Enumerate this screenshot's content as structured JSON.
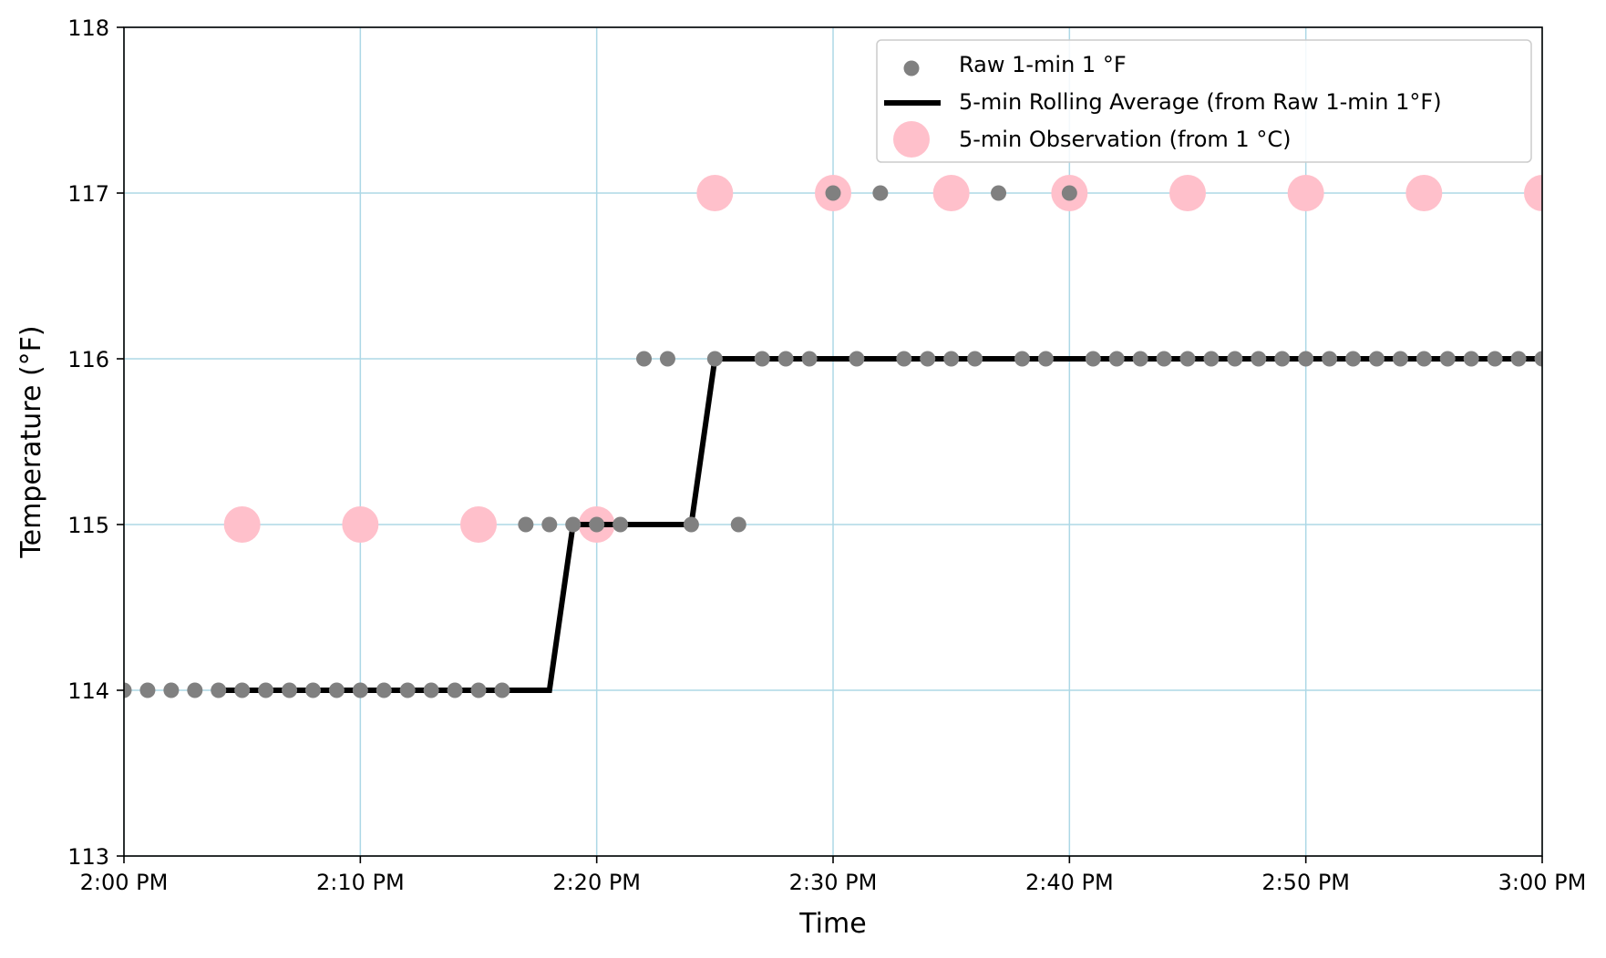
{
  "chart_data": {
    "type": "scatter",
    "xlabel": "Time",
    "ylabel": "Temperature (°F)",
    "xlim_minutes_after_2pm": [
      0,
      60
    ],
    "ylim": [
      113,
      118
    ],
    "x_tick_labels": [
      "2:00 PM",
      "2:10 PM",
      "2:20 PM",
      "2:30 PM",
      "2:40 PM",
      "2:50 PM",
      "3:00 PM"
    ],
    "y_ticks": [
      113,
      114,
      115,
      116,
      117,
      118
    ],
    "grid": true,
    "grid_color": "#add8e6",
    "legend_position": "top-right",
    "series": [
      {
        "name": "Raw 1-min 1 °F",
        "kind": "scatter",
        "color": "#808080",
        "x": [
          "2:00 PM",
          "2:01 PM",
          "2:02 PM",
          "2:03 PM",
          "2:04 PM",
          "2:05 PM",
          "2:06 PM",
          "2:07 PM",
          "2:08 PM",
          "2:09 PM",
          "2:10 PM",
          "2:11 PM",
          "2:12 PM",
          "2:13 PM",
          "2:14 PM",
          "2:15 PM",
          "2:16 PM",
          "2:17 PM",
          "2:18 PM",
          "2:19 PM",
          "2:20 PM",
          "2:21 PM",
          "2:22 PM",
          "2:23 PM",
          "2:24 PM",
          "2:25 PM",
          "2:26 PM",
          "2:27 PM",
          "2:28 PM",
          "2:29 PM",
          "2:30 PM",
          "2:31 PM",
          "2:32 PM",
          "2:33 PM",
          "2:34 PM",
          "2:35 PM",
          "2:36 PM",
          "2:37 PM",
          "2:38 PM",
          "2:39 PM",
          "2:40 PM",
          "2:41 PM",
          "2:42 PM",
          "2:43 PM",
          "2:44 PM",
          "2:45 PM",
          "2:46 PM",
          "2:47 PM",
          "2:48 PM",
          "2:49 PM",
          "2:50 PM",
          "2:51 PM",
          "2:52 PM",
          "2:53 PM",
          "2:54 PM",
          "2:55 PM",
          "2:56 PM",
          "2:57 PM",
          "2:58 PM",
          "2:59 PM",
          "3:00 PM"
        ],
        "y": [
          114,
          114,
          114,
          114,
          114,
          114,
          114,
          114,
          114,
          114,
          114,
          114,
          114,
          114,
          114,
          114,
          114,
          115,
          115,
          115,
          115,
          115,
          116,
          116,
          115,
          116,
          115,
          116,
          116,
          116,
          117,
          116,
          117,
          116,
          116,
          116,
          116,
          117,
          116,
          116,
          117,
          116,
          116,
          116,
          116,
          116,
          116,
          116,
          116,
          116,
          116,
          116,
          116,
          116,
          116,
          116,
          116,
          116,
          116,
          116,
          116
        ]
      },
      {
        "name": "5-min Rolling Average (from Raw 1-min 1°F)",
        "kind": "line",
        "color": "#000000",
        "x": [
          "2:04 PM",
          "2:18 PM",
          "2:19 PM",
          "2:24 PM",
          "2:25 PM",
          "3:00 PM"
        ],
        "y": [
          114,
          114,
          115,
          115,
          116,
          116
        ]
      },
      {
        "name": "5-min Observation (from 1 °C)",
        "kind": "scatter",
        "color": "#ffc0cb",
        "x": [
          "2:05 PM",
          "2:10 PM",
          "2:15 PM",
          "2:20 PM",
          "2:25 PM",
          "2:30 PM",
          "2:35 PM",
          "2:40 PM",
          "2:45 PM",
          "2:50 PM",
          "2:55 PM",
          "3:00 PM"
        ],
        "y": [
          115,
          115,
          115,
          115,
          117,
          117,
          117,
          117,
          117,
          117,
          117,
          117
        ]
      }
    ]
  }
}
